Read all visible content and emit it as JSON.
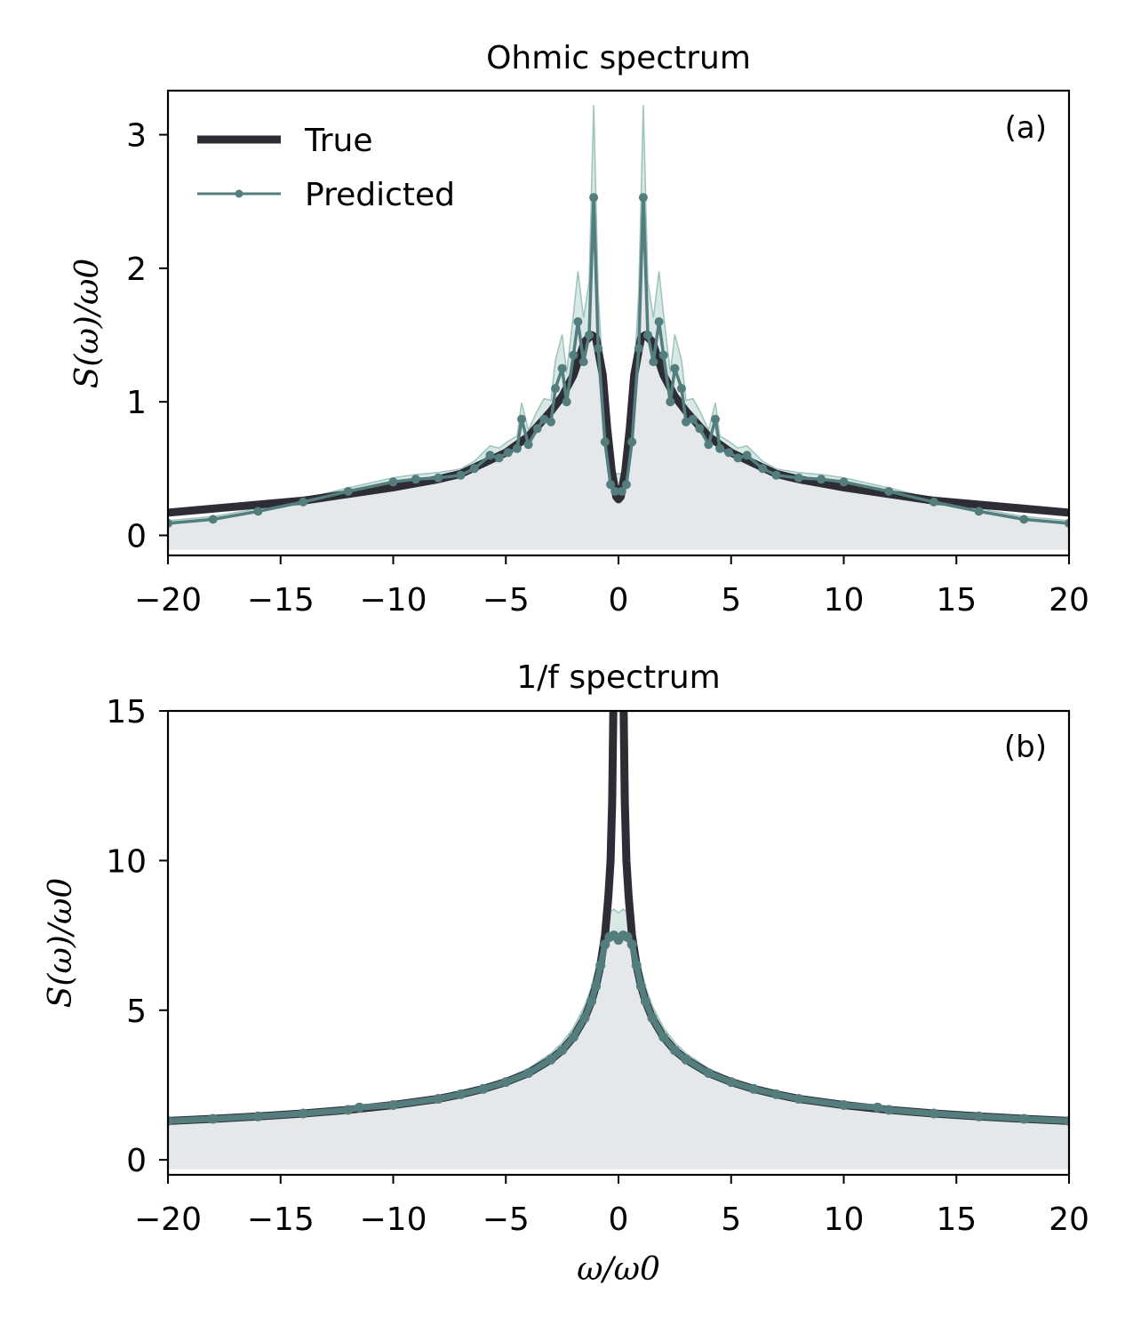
{
  "chart_data": [
    {
      "type": "line",
      "title": "Ohmic spectrum",
      "panel_label": "(a)",
      "xlabel": "",
      "ylabel": "S(ω)/ω0",
      "xlim": [
        -20,
        20
      ],
      "ylim": [
        -0.15,
        3.33
      ],
      "xticks": [
        -20,
        -15,
        -10,
        -5,
        0,
        5,
        10,
        15,
        20
      ],
      "xtick_labels": [
        "−20",
        "−15",
        "−10",
        "−5",
        "0",
        "5",
        "10",
        "15",
        "20"
      ],
      "yticks": [
        0,
        1,
        2,
        3
      ],
      "ytick_labels": [
        "0",
        "1",
        "2",
        "3"
      ],
      "legend": {
        "placement": "upper-left",
        "entries": [
          "True",
          "Predicted"
        ]
      },
      "series": [
        {
          "name": "True",
          "color": "#2e2d36",
          "x": [
            -20,
            -18,
            -16,
            -14,
            -12,
            -10,
            -9,
            -8,
            -7,
            -6,
            -5,
            -4,
            -3,
            -2.5,
            -2,
            -1.5,
            -1.2,
            -1,
            -0.7,
            -0.5,
            -0.3,
            -0.1,
            0,
            0.1,
            0.3,
            0.5,
            0.7,
            1,
            1.2,
            1.5,
            2,
            2.5,
            3,
            4,
            5,
            6,
            7,
            8,
            9,
            10,
            12,
            14,
            16,
            18,
            20
          ],
          "y": [
            0.17,
            0.2,
            0.23,
            0.26,
            0.31,
            0.36,
            0.39,
            0.42,
            0.46,
            0.54,
            0.62,
            0.74,
            0.93,
            1.04,
            1.2,
            1.45,
            1.5,
            1.48,
            1.2,
            0.8,
            0.48,
            0.29,
            0.27,
            0.29,
            0.48,
            0.8,
            1.2,
            1.48,
            1.5,
            1.45,
            1.2,
            1.04,
            0.93,
            0.74,
            0.62,
            0.54,
            0.46,
            0.42,
            0.39,
            0.36,
            0.31,
            0.26,
            0.23,
            0.2,
            0.17
          ]
        },
        {
          "name": "Predicted",
          "color": "#547d7e",
          "x": [
            -20,
            -18,
            -16,
            -14,
            -12,
            -10,
            -9,
            -8,
            -7,
            -6.4,
            -5.7,
            -5.3,
            -4.9,
            -4.5,
            -4.3,
            -4.0,
            -3.6,
            -3.3,
            -3.0,
            -2.8,
            -2.5,
            -2.3,
            -2.0,
            -1.8,
            -1.55,
            -1.3,
            -1.1,
            -0.9,
            -0.6,
            -0.35,
            -0.15,
            0.15,
            0.35,
            0.6,
            0.9,
            1.1,
            1.3,
            1.55,
            1.8,
            2.0,
            2.3,
            2.5,
            2.8,
            3.0,
            3.3,
            3.6,
            4.0,
            4.3,
            4.5,
            4.9,
            5.3,
            5.7,
            6.4,
            7,
            8,
            9,
            10,
            12,
            14,
            16,
            18,
            20
          ],
          "y": [
            0.09,
            0.12,
            0.18,
            0.25,
            0.33,
            0.4,
            0.42,
            0.43,
            0.45,
            0.5,
            0.6,
            0.58,
            0.62,
            0.65,
            0.87,
            0.68,
            0.8,
            0.87,
            0.85,
            1.1,
            1.25,
            1.0,
            1.35,
            1.6,
            1.3,
            1.5,
            2.53,
            1.4,
            0.7,
            0.38,
            0.33,
            0.33,
            0.38,
            0.7,
            1.4,
            2.53,
            1.5,
            1.3,
            1.6,
            1.35,
            1.0,
            1.25,
            1.1,
            0.85,
            0.87,
            0.8,
            0.68,
            0.87,
            0.65,
            0.62,
            0.58,
            0.6,
            0.5,
            0.45,
            0.43,
            0.42,
            0.4,
            0.33,
            0.25,
            0.18,
            0.12,
            0.09
          ]
        }
      ]
    },
    {
      "type": "line",
      "title": "1/f spectrum",
      "panel_label": "(b)",
      "xlabel": "ω/ω0",
      "ylabel": "S(ω)/ω0",
      "xlim": [
        -20,
        20
      ],
      "ylim": [
        -0.5,
        15
      ],
      "xticks": [
        -20,
        -15,
        -10,
        -5,
        0,
        5,
        10,
        15,
        20
      ],
      "xtick_labels": [
        "−20",
        "−15",
        "−10",
        "−5",
        "0",
        "5",
        "10",
        "15",
        "20"
      ],
      "yticks": [
        0,
        5,
        10,
        15
      ],
      "ytick_labels": [
        "0",
        "5",
        "10",
        "15"
      ],
      "series": [
        {
          "name": "True",
          "color": "#2e2d36",
          "x": [
            -20,
            -18,
            -16,
            -14,
            -12,
            -10,
            -8,
            -7,
            -6,
            -5,
            -4,
            -3,
            -2.5,
            -2,
            -1.5,
            -1.2,
            -1.0,
            -0.8,
            -0.6,
            -0.45,
            -0.35,
            -0.28,
            -0.22,
            0.22,
            0.28,
            0.35,
            0.45,
            0.6,
            0.8,
            1.0,
            1.2,
            1.5,
            2,
            2.5,
            3,
            4,
            5,
            6,
            7,
            8,
            10,
            12,
            14,
            16,
            18,
            20
          ],
          "y": [
            1.3,
            1.37,
            1.45,
            1.55,
            1.67,
            1.83,
            2.04,
            2.19,
            2.37,
            2.6,
            2.9,
            3.35,
            3.66,
            4.1,
            4.74,
            5.3,
            5.8,
            6.5,
            7.5,
            8.8,
            10.0,
            12.0,
            15.5,
            15.5,
            12.0,
            10.0,
            8.8,
            7.5,
            6.5,
            5.8,
            5.3,
            4.74,
            4.1,
            3.66,
            3.35,
            2.9,
            2.6,
            2.37,
            2.19,
            2.04,
            1.83,
            1.67,
            1.55,
            1.45,
            1.37,
            1.3
          ]
        },
        {
          "name": "Predicted",
          "color": "#547d7e",
          "x": [
            -20,
            -18,
            -16,
            -14,
            -12,
            -11.5,
            -10,
            -8,
            -7,
            -6,
            -5,
            -4,
            -3,
            -2.5,
            -2,
            -1.5,
            -1.2,
            -1.0,
            -0.8,
            -0.6,
            -0.4,
            -0.2,
            0,
            0.2,
            0.4,
            0.6,
            0.8,
            1.0,
            1.2,
            1.5,
            2,
            2.5,
            3,
            4,
            5,
            6,
            7,
            8,
            10,
            11.5,
            12,
            14,
            16,
            18,
            20
          ],
          "y": [
            1.3,
            1.37,
            1.45,
            1.55,
            1.67,
            1.75,
            1.83,
            2.04,
            2.19,
            2.37,
            2.6,
            2.9,
            3.35,
            3.66,
            4.1,
            4.74,
            5.3,
            5.8,
            6.5,
            7.2,
            7.45,
            7.5,
            7.35,
            7.5,
            7.45,
            7.2,
            6.5,
            5.8,
            5.3,
            4.74,
            4.1,
            3.66,
            3.35,
            2.9,
            2.6,
            2.37,
            2.19,
            2.04,
            1.83,
            1.75,
            1.67,
            1.55,
            1.45,
            1.37,
            1.3
          ]
        }
      ]
    }
  ]
}
